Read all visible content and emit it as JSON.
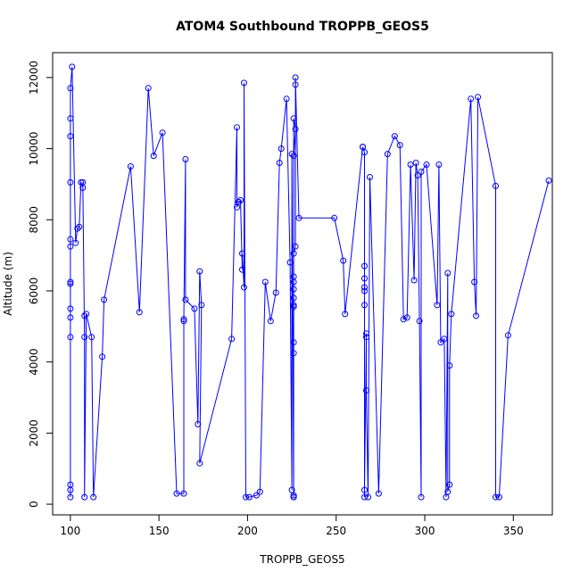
{
  "chart_data": {
    "type": "line",
    "title": "ATOM4 Southbound TROPPB_GEOS5",
    "xlabel": "TROPPB_GEOS5",
    "ylabel": "Altitude (m)",
    "xlim": [
      90,
      372
    ],
    "ylim": [
      -300,
      12700
    ],
    "x_ticks": [
      100,
      150,
      200,
      250,
      300,
      350
    ],
    "y_ticks": [
      0,
      2000,
      4000,
      6000,
      8000,
      10000,
      12000
    ],
    "grid": false,
    "series": [
      {
        "color": "#0000ff",
        "marker": "open-circle",
        "points": [
          [
            100,
            200
          ],
          [
            100,
            400
          ],
          [
            100,
            550
          ],
          [
            100,
            4700
          ],
          [
            100,
            5250
          ],
          [
            100,
            5500
          ],
          [
            100,
            6200
          ],
          [
            100,
            6250
          ],
          [
            100,
            7250
          ],
          [
            100,
            7450
          ],
          [
            100,
            9050
          ],
          [
            100,
            10350
          ],
          [
            100,
            10850
          ],
          [
            100,
            11700
          ],
          [
            101,
            12300
          ],
          [
            103,
            7350
          ],
          [
            104,
            7750
          ],
          [
            105,
            7800
          ],
          [
            106,
            9050
          ],
          [
            107,
            8900
          ],
          [
            107,
            9050
          ],
          [
            108,
            4700
          ],
          [
            108,
            5300
          ],
          [
            108,
            200
          ],
          [
            109,
            5350
          ],
          [
            112,
            4700
          ],
          [
            113,
            200
          ],
          [
            118,
            4150
          ],
          [
            119,
            5750
          ],
          [
            134,
            9500
          ],
          [
            139,
            5400
          ],
          [
            144,
            11700
          ],
          [
            147,
            9800
          ],
          [
            152,
            10450
          ],
          [
            160,
            300
          ],
          [
            164,
            300
          ],
          [
            164,
            5150
          ],
          [
            164,
            5200
          ],
          [
            165,
            9700
          ],
          [
            165,
            5750
          ],
          [
            170,
            5500
          ],
          [
            172,
            2250
          ],
          [
            173,
            6550
          ],
          [
            174,
            5600
          ],
          [
            173,
            1150
          ],
          [
            191,
            4650
          ],
          [
            194,
            10600
          ],
          [
            194,
            8350
          ],
          [
            195,
            8500
          ],
          [
            196,
            8550
          ],
          [
            197,
            6600
          ],
          [
            197,
            7050
          ],
          [
            198,
            6100
          ],
          [
            198,
            11850
          ],
          [
            199,
            200
          ],
          [
            201,
            200
          ],
          [
            205,
            250
          ],
          [
            207,
            350
          ],
          [
            210,
            6250
          ],
          [
            213,
            5150
          ],
          [
            216,
            5950
          ],
          [
            218,
            9600
          ],
          [
            219,
            10000
          ],
          [
            222,
            11400
          ],
          [
            224,
            6800
          ],
          [
            225,
            400
          ],
          [
            225,
            9850
          ],
          [
            226,
            200
          ],
          [
            226,
            250
          ],
          [
            226,
            200
          ],
          [
            226,
            10850
          ],
          [
            227,
            10550
          ],
          [
            226,
            9800
          ],
          [
            226,
            4250
          ],
          [
            226,
            4550
          ],
          [
            226,
            5550
          ],
          [
            226,
            5600
          ],
          [
            226,
            5800
          ],
          [
            226,
            6050
          ],
          [
            226,
            6250
          ],
          [
            226,
            6400
          ],
          [
            226,
            7050
          ],
          [
            227,
            7250
          ],
          [
            227,
            11800
          ],
          [
            227,
            12000
          ],
          [
            229,
            8050
          ],
          [
            249,
            8050
          ],
          [
            254,
            6850
          ],
          [
            255,
            5350
          ],
          [
            265,
            10050
          ],
          [
            265,
            10050
          ],
          [
            266,
            9900
          ],
          [
            266,
            6700
          ],
          [
            266,
            6350
          ],
          [
            266,
            6100
          ],
          [
            266,
            6000
          ],
          [
            266,
            5600
          ],
          [
            266,
            200
          ],
          [
            266,
            400
          ],
          [
            267,
            4700
          ],
          [
            267,
            4800
          ],
          [
            267,
            3200
          ],
          [
            268,
            200
          ],
          [
            269,
            9200
          ],
          [
            274,
            300
          ],
          [
            279,
            9850
          ],
          [
            283,
            10350
          ],
          [
            286,
            10100
          ],
          [
            288,
            5200
          ],
          [
            290,
            5250
          ],
          [
            292,
            9550
          ],
          [
            294,
            6300
          ],
          [
            295,
            9600
          ],
          [
            296,
            9250
          ],
          [
            297,
            5150
          ],
          [
            298,
            200
          ],
          [
            298,
            9350
          ],
          [
            301,
            9550
          ],
          [
            307,
            5600
          ],
          [
            308,
            9550
          ],
          [
            309,
            4550
          ],
          [
            311,
            4650
          ],
          [
            312,
            200
          ],
          [
            313,
            6500
          ],
          [
            313,
            350
          ],
          [
            314,
            550
          ],
          [
            314,
            3900
          ],
          [
            315,
            5350
          ],
          [
            326,
            11400
          ],
          [
            328,
            6250
          ],
          [
            329,
            5300
          ],
          [
            330,
            11450
          ],
          [
            340,
            8950
          ],
          [
            340,
            200
          ],
          [
            342,
            200
          ],
          [
            347,
            4750
          ],
          [
            370,
            9100
          ]
        ]
      }
    ]
  }
}
